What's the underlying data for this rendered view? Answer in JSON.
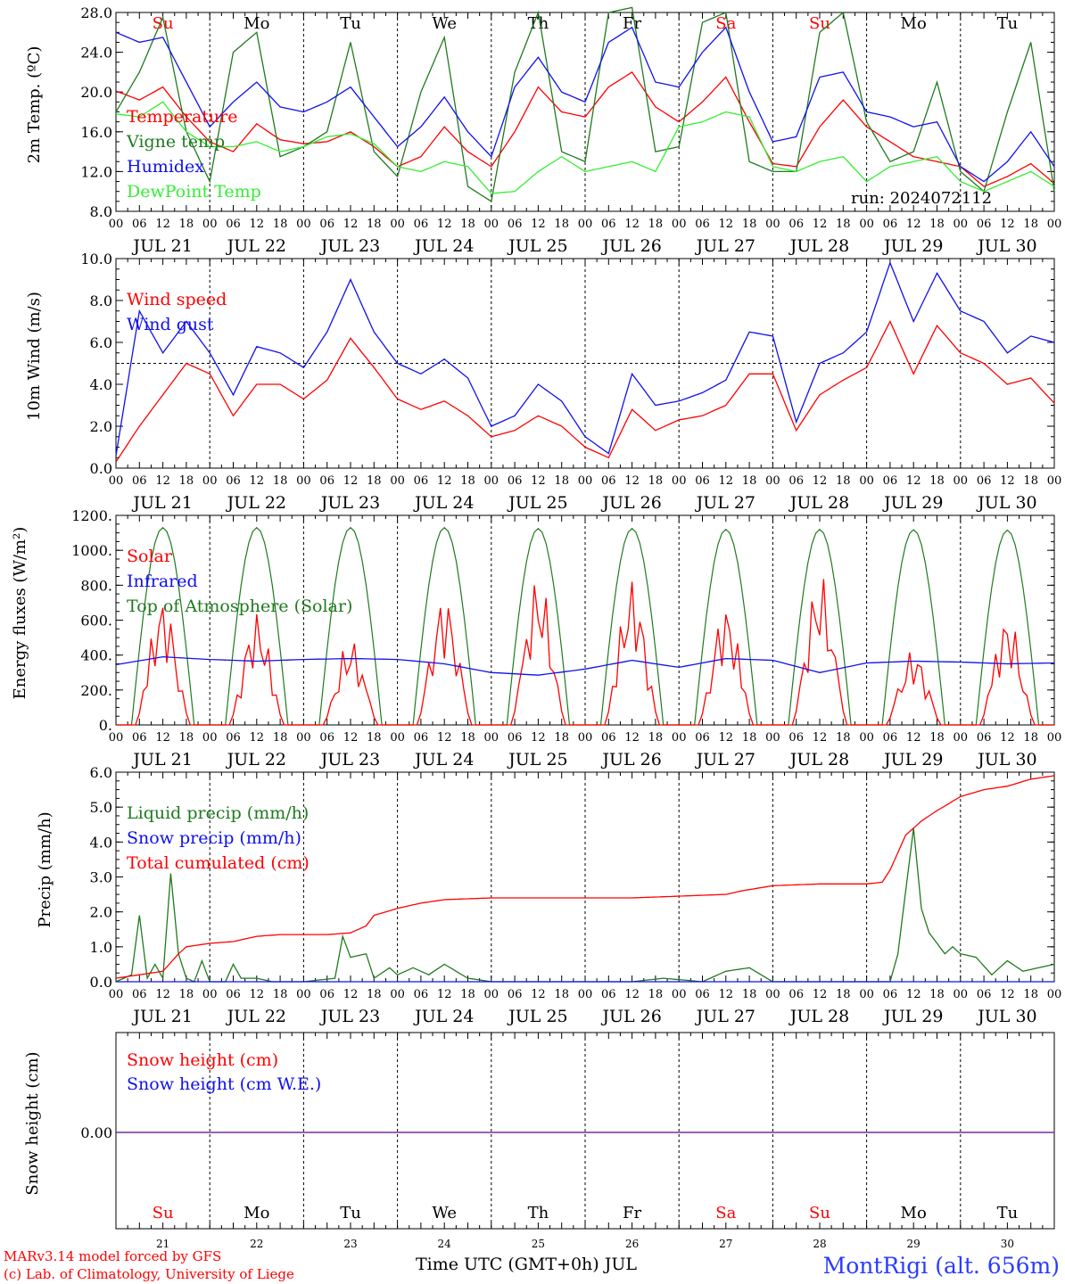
{
  "footer": {
    "credit_line1": "MARv3.14 model forced by GFS",
    "credit_line2": "(c) Lab. of Climatology, University of Liege",
    "x_title": "Time UTC (GMT+0h) JUL",
    "station": "MontRigi (alt. 656m)"
  },
  "run_label": "run: 2024072112",
  "hour_ticks": [
    "00",
    "06",
    "12",
    "18"
  ],
  "dates": [
    "JUL 21",
    "JUL 22",
    "JUL 23",
    "JUL 24",
    "JUL 25",
    "JUL 26",
    "JUL 27",
    "JUL 28",
    "JUL 29",
    "JUL 30"
  ],
  "weekdays": [
    {
      "label": "Su",
      "color": "#ff0000"
    },
    {
      "label": "Mo",
      "color": "#000000"
    },
    {
      "label": "Tu",
      "color": "#000000"
    },
    {
      "label": "We",
      "color": "#000000"
    },
    {
      "label": "Th",
      "color": "#000000"
    },
    {
      "label": "Fr",
      "color": "#000000"
    },
    {
      "label": "Sa",
      "color": "#ff0000"
    },
    {
      "label": "Su",
      "color": "#ff0000"
    },
    {
      "label": "Mo",
      "color": "#000000"
    },
    {
      "label": "Tu",
      "color": "#000000"
    }
  ],
  "day_numbers": [
    "21",
    "22",
    "23",
    "24",
    "25",
    "26",
    "27",
    "28",
    "29",
    "30"
  ],
  "chart_data": [
    {
      "type": "line",
      "ylabel": "2m Temp. (ºC)",
      "ylim": [
        8,
        28
      ],
      "yticks": [
        "8.0",
        "12.0",
        "16.0",
        "20.0",
        "24.0",
        "28.0"
      ],
      "x_unit": "hours from JUL 21 00 UTC",
      "series": [
        {
          "name": "Temperature",
          "color": "#ff0000",
          "x": [
            0,
            6,
            12,
            18,
            24,
            30,
            36,
            42,
            48,
            54,
            60,
            66,
            72,
            78,
            84,
            90,
            96,
            102,
            108,
            114,
            120,
            126,
            132,
            138,
            144,
            150,
            156,
            162,
            168,
            174,
            180,
            186,
            192,
            198,
            204,
            210,
            216,
            222,
            228,
            234,
            240
          ],
          "y": [
            20.1,
            19.2,
            20.5,
            17.5,
            15.0,
            14.0,
            16.8,
            15.2,
            14.8,
            15.0,
            16.0,
            14.5,
            12.5,
            13.5,
            16.5,
            14.0,
            12.5,
            16.0,
            20.5,
            18.0,
            17.5,
            20.5,
            22.0,
            18.5,
            17.0,
            19.0,
            21.5,
            17.0,
            12.8,
            12.5,
            16.5,
            19.2,
            16.5,
            15.0,
            13.5,
            13.0,
            12.5,
            10.5,
            11.5,
            12.8,
            10.8
          ]
        },
        {
          "name": "Vigne temp",
          "color": "#1f7a1f",
          "x": [
            0,
            6,
            12,
            18,
            24,
            30,
            36,
            42,
            48,
            54,
            60,
            66,
            72,
            78,
            84,
            90,
            96,
            102,
            108,
            114,
            120,
            126,
            132,
            138,
            144,
            150,
            156,
            162,
            168,
            174,
            180,
            186,
            192,
            198,
            204,
            210,
            216,
            222,
            228,
            234,
            240
          ],
          "y": [
            18.0,
            22.0,
            27.5,
            16.0,
            11.0,
            24.0,
            26.0,
            13.5,
            14.5,
            16.0,
            25.0,
            14.0,
            11.5,
            20.0,
            25.5,
            10.5,
            9.0,
            22.0,
            28.0,
            14.0,
            13.0,
            28.0,
            28.5,
            14.0,
            14.5,
            27.0,
            28.0,
            13.0,
            12.0,
            12.0,
            26.0,
            28.0,
            17.0,
            13.0,
            14.0,
            21.0,
            12.0,
            10.0,
            18.0,
            25.0,
            10.0
          ]
        },
        {
          "name": "Humidex",
          "color": "#1010ee",
          "x": [
            0,
            6,
            12,
            18,
            24,
            30,
            36,
            42,
            48,
            54,
            60,
            66,
            72,
            78,
            84,
            90,
            96,
            102,
            108,
            114,
            120,
            126,
            132,
            138,
            144,
            150,
            156,
            162,
            168,
            174,
            180,
            186,
            192,
            198,
            204,
            210,
            216,
            222,
            228,
            234,
            240
          ],
          "y": [
            26.0,
            25.0,
            25.5,
            21.0,
            16.5,
            19.0,
            21.0,
            18.5,
            18.0,
            19.0,
            20.5,
            17.5,
            14.5,
            16.5,
            19.5,
            16.0,
            13.5,
            20.5,
            23.5,
            20.0,
            19.0,
            25.0,
            26.5,
            21.0,
            20.5,
            24.0,
            26.5,
            20.0,
            15.0,
            15.5,
            21.5,
            22.0,
            18.0,
            17.5,
            16.5,
            17.0,
            12.5,
            11.0,
            13.0,
            16.0,
            12.5
          ]
        },
        {
          "name": "DewPoint Temp",
          "color": "#33ee33",
          "x": [
            0,
            6,
            12,
            18,
            24,
            30,
            36,
            42,
            48,
            54,
            60,
            66,
            72,
            78,
            84,
            90,
            96,
            102,
            108,
            114,
            120,
            126,
            132,
            138,
            144,
            150,
            156,
            162,
            168,
            174,
            180,
            186,
            192,
            198,
            204,
            210,
            216,
            222,
            228,
            234,
            240
          ],
          "y": [
            17.8,
            17.5,
            19.0,
            16.0,
            14.5,
            14.5,
            15.0,
            14.0,
            14.5,
            15.5,
            15.8,
            14.8,
            12.5,
            12.0,
            13.0,
            12.5,
            9.8,
            10.0,
            12.0,
            13.5,
            12.0,
            12.5,
            13.0,
            12.0,
            16.5,
            17.0,
            18.0,
            17.5,
            12.5,
            12.0,
            13.0,
            13.5,
            11.0,
            12.5,
            13.0,
            13.5,
            11.0,
            10.0,
            11.0,
            12.0,
            10.5
          ]
        }
      ]
    },
    {
      "type": "line",
      "ylabel": "10m Wind (m/s)",
      "ylim": [
        0,
        10
      ],
      "yticks": [
        "0.0",
        "2.0",
        "4.0",
        "6.0",
        "8.0",
        "10.0"
      ],
      "reference_line": 5,
      "x_unit": "hours from JUL 21 00 UTC",
      "series": [
        {
          "name": "Wind speed",
          "color": "#ff0000",
          "x": [
            0,
            6,
            12,
            18,
            24,
            30,
            36,
            42,
            48,
            54,
            60,
            66,
            72,
            78,
            84,
            90,
            96,
            102,
            108,
            114,
            120,
            126,
            132,
            138,
            144,
            150,
            156,
            162,
            168,
            174,
            180,
            186,
            192,
            198,
            204,
            210,
            216,
            222,
            228,
            234,
            240
          ],
          "y": [
            0.3,
            2.0,
            3.5,
            5.0,
            4.5,
            2.5,
            4.0,
            4.0,
            3.3,
            4.2,
            6.2,
            4.8,
            3.3,
            2.8,
            3.2,
            2.5,
            1.5,
            1.8,
            2.5,
            2.0,
            1.0,
            0.5,
            2.8,
            1.8,
            2.3,
            2.5,
            3.0,
            4.5,
            4.5,
            1.8,
            3.5,
            4.2,
            4.8,
            7.0,
            4.5,
            6.8,
            5.5,
            5.0,
            4.0,
            4.3,
            3.1
          ]
        },
        {
          "name": "Wind gust",
          "color": "#1010ee",
          "x": [
            0,
            6,
            12,
            18,
            24,
            30,
            36,
            42,
            48,
            54,
            60,
            66,
            72,
            78,
            84,
            90,
            96,
            102,
            108,
            114,
            120,
            126,
            132,
            138,
            144,
            150,
            156,
            162,
            168,
            174,
            180,
            186,
            192,
            198,
            204,
            210,
            216,
            222,
            228,
            234,
            240
          ],
          "y": [
            0.6,
            7.5,
            5.5,
            7.0,
            5.5,
            3.5,
            5.8,
            5.5,
            4.8,
            6.5,
            9.0,
            6.5,
            5.0,
            4.5,
            5.2,
            4.3,
            2.0,
            2.5,
            4.0,
            3.2,
            1.5,
            0.7,
            4.5,
            3.0,
            3.2,
            3.6,
            4.2,
            6.5,
            6.3,
            2.2,
            5.0,
            5.5,
            6.5,
            9.8,
            7.0,
            9.3,
            7.5,
            7.0,
            5.5,
            6.3,
            6.0
          ]
        }
      ]
    },
    {
      "type": "line",
      "ylabel": "Energy fluxes (W/m²)",
      "ylim": [
        0,
        1200
      ],
      "yticks": [
        "0.",
        "200.",
        "400.",
        "600.",
        "800.",
        "1000.",
        "1200."
      ],
      "x_unit": "hours from JUL 21 00 UTC",
      "daily_peaks": {
        "Solar": [
          740,
          650,
          500,
          760,
          860,
          840,
          700,
          870,
          440,
          640
        ],
        "Top of Atmosphere (Solar)": [
          1130,
          1130,
          1130,
          1130,
          1125,
          1125,
          1120,
          1120,
          1118,
          1115
        ]
      },
      "series": [
        {
          "name": "Infrared",
          "color": "#1010ee",
          "x": [
            0,
            12,
            24,
            36,
            48,
            60,
            72,
            84,
            96,
            108,
            120,
            132,
            144,
            156,
            168,
            180,
            192,
            204,
            216,
            228,
            240
          ],
          "y": [
            345,
            390,
            375,
            365,
            375,
            380,
            375,
            350,
            300,
            285,
            320,
            370,
            330,
            380,
            370,
            300,
            355,
            365,
            360,
            350,
            355
          ]
        }
      ]
    },
    {
      "type": "line",
      "ylabel": "Precip (mm/h)",
      "ylim": [
        0,
        6
      ],
      "yticks": [
        "0.0",
        "1.0",
        "2.0",
        "3.0",
        "4.0",
        "5.0",
        "6.0"
      ],
      "x_unit": "hours from JUL 21 00 UTC",
      "series": [
        {
          "name": "Liquid precip (mm/h)",
          "color": "#1f7a1f",
          "x": [
            0,
            4,
            6,
            8,
            10,
            12,
            14,
            16,
            18,
            20,
            22,
            24,
            28,
            30,
            32,
            36,
            40,
            44,
            48,
            56,
            58,
            60,
            64,
            66,
            70,
            72,
            76,
            80,
            84,
            90,
            96,
            110,
            120,
            132,
            140,
            150,
            156,
            162,
            168,
            174,
            180,
            190,
            198,
            200,
            204,
            206,
            208,
            212,
            214,
            216,
            220,
            224,
            228,
            232,
            236,
            240
          ],
          "y": [
            0,
            0.2,
            1.9,
            0.1,
            0.5,
            0.1,
            3.1,
            0.8,
            0.1,
            0,
            0.6,
            0,
            0,
            0.5,
            0.1,
            0.1,
            0,
            0,
            0,
            0.1,
            1.3,
            0.7,
            0.8,
            0.1,
            0.4,
            0.2,
            0.4,
            0.2,
            0.5,
            0.1,
            0,
            0,
            0,
            0,
            0.1,
            0,
            0.3,
            0.4,
            0,
            0,
            0,
            0,
            0,
            0.8,
            4.4,
            2.1,
            1.4,
            0.8,
            1.0,
            0.8,
            0.7,
            0.2,
            0.6,
            0.3,
            0.4,
            0.5
          ]
        },
        {
          "name": "Snow precip (mm/h)",
          "color": "#1010ee",
          "x": [
            0,
            240
          ],
          "y": [
            0,
            0
          ]
        },
        {
          "name": "Total cumulated (cm)",
          "color": "#ff0000",
          "x": [
            0,
            12,
            16,
            18,
            24,
            30,
            36,
            42,
            48,
            54,
            60,
            64,
            66,
            72,
            78,
            84,
            96,
            108,
            120,
            132,
            144,
            156,
            160,
            168,
            180,
            192,
            196,
            198,
            202,
            206,
            210,
            216,
            222,
            228,
            234,
            240
          ],
          "y": [
            0.1,
            0.3,
            0.8,
            1.0,
            1.1,
            1.15,
            1.3,
            1.35,
            1.35,
            1.35,
            1.4,
            1.6,
            1.9,
            2.1,
            2.25,
            2.35,
            2.4,
            2.4,
            2.4,
            2.4,
            2.45,
            2.5,
            2.6,
            2.75,
            2.8,
            2.8,
            2.85,
            3.2,
            4.2,
            4.6,
            4.9,
            5.3,
            5.5,
            5.6,
            5.8,
            5.9
          ]
        }
      ]
    },
    {
      "type": "line",
      "ylabel": "Snow height (cm)",
      "yticks": [
        "0.00"
      ],
      "x_unit": "hours from JUL 21 00 UTC",
      "series": [
        {
          "name": "Snow height (cm)",
          "color": "#ff0000",
          "x": [
            0,
            240
          ],
          "y": [
            0,
            0
          ]
        },
        {
          "name": "Snow height (cm W.E.)",
          "color": "#1010ee",
          "x": [
            0,
            240
          ],
          "y": [
            0,
            0
          ]
        }
      ]
    }
  ]
}
